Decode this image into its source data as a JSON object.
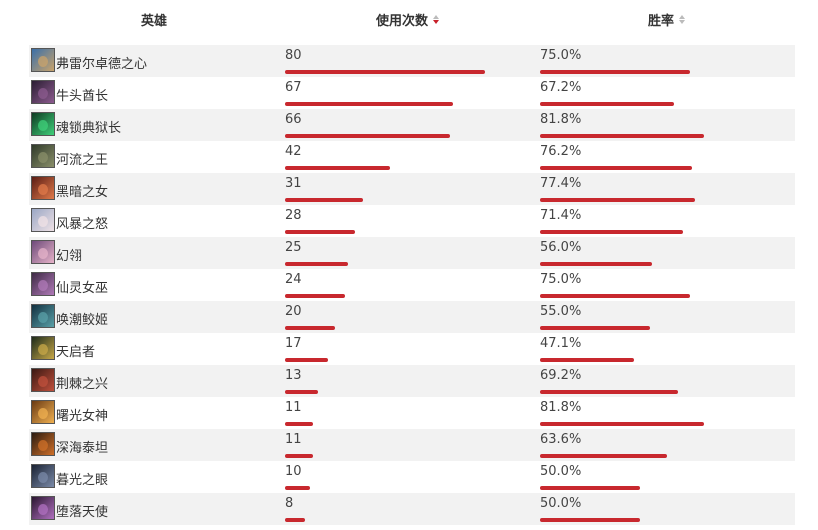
{
  "header": {
    "hero": "英雄",
    "uses": "使用次数",
    "win_rate": "胜率"
  },
  "sort": {
    "column": "uses",
    "direction": "desc"
  },
  "bar_color": "#c8282e",
  "max_uses": 80,
  "rows": [
    {
      "hero": "弗雷尔卓德之心",
      "uses": "80",
      "win_rate": "75.0%",
      "uses_value": 80,
      "win_value": 75.0,
      "avatar_colors": [
        "#3a6fa8",
        "#c9a36b"
      ]
    },
    {
      "hero": "牛头酋长",
      "uses": "67",
      "win_rate": "67.2%",
      "uses_value": 67,
      "win_value": 67.2,
      "avatar_colors": [
        "#2b1e33",
        "#8c5b8f"
      ]
    },
    {
      "hero": "魂锁典狱长",
      "uses": "66",
      "win_rate": "81.8%",
      "uses_value": 66,
      "win_value": 81.8,
      "avatar_colors": [
        "#0e3a22",
        "#3fd07a"
      ]
    },
    {
      "hero": "河流之王",
      "uses": "42",
      "win_rate": "76.2%",
      "uses_value": 42,
      "win_value": 76.2,
      "avatar_colors": [
        "#2f3a2a",
        "#8a8f6a"
      ]
    },
    {
      "hero": "黑暗之女",
      "uses": "31",
      "win_rate": "77.4%",
      "uses_value": 31,
      "win_value": 77.4,
      "avatar_colors": [
        "#5a1c14",
        "#e07a4a"
      ]
    },
    {
      "hero": "风暴之怒",
      "uses": "28",
      "win_rate": "71.4%",
      "uses_value": 28,
      "win_value": 71.4,
      "avatar_colors": [
        "#9aa7c4",
        "#f0e2e6"
      ]
    },
    {
      "hero": "幻翎",
      "uses": "25",
      "win_rate": "56.0%",
      "uses_value": 25,
      "win_value": 56.0,
      "avatar_colors": [
        "#6e4a7a",
        "#e6b3c9"
      ]
    },
    {
      "hero": "仙灵女巫",
      "uses": "24",
      "win_rate": "75.0%",
      "uses_value": 24,
      "win_value": 75.0,
      "avatar_colors": [
        "#3e2a45",
        "#b07ab8"
      ]
    },
    {
      "hero": "唤潮鲛姬",
      "uses": "20",
      "win_rate": "55.0%",
      "uses_value": 20,
      "win_value": 55.0,
      "avatar_colors": [
        "#123040",
        "#5aa0a8"
      ]
    },
    {
      "hero": "天启者",
      "uses": "17",
      "win_rate": "47.1%",
      "uses_value": 17,
      "win_value": 47.1,
      "avatar_colors": [
        "#1c2a1a",
        "#c8a848"
      ]
    },
    {
      "hero": "荆棘之兴",
      "uses": "13",
      "win_rate": "69.2%",
      "uses_value": 13,
      "win_value": 69.2,
      "avatar_colors": [
        "#3a1812",
        "#c0503c"
      ]
    },
    {
      "hero": "曙光女神",
      "uses": "11",
      "win_rate": "81.8%",
      "uses_value": 11,
      "win_value": 81.8,
      "avatar_colors": [
        "#6a3a14",
        "#f0b050"
      ]
    },
    {
      "hero": "深海泰坦",
      "uses": "11",
      "win_rate": "63.6%",
      "uses_value": 11,
      "win_value": 63.6,
      "avatar_colors": [
        "#2a1a10",
        "#d07028"
      ]
    },
    {
      "hero": "暮光之眼",
      "uses": "10",
      "win_rate": "50.0%",
      "uses_value": 10,
      "win_value": 50.0,
      "avatar_colors": [
        "#1a2233",
        "#7a8aa8"
      ]
    },
    {
      "hero": "堕落天使",
      "uses": "8",
      "win_rate": "50.0%",
      "uses_value": 8,
      "win_value": 50.0,
      "avatar_colors": [
        "#2a1630",
        "#b070c0"
      ]
    }
  ]
}
